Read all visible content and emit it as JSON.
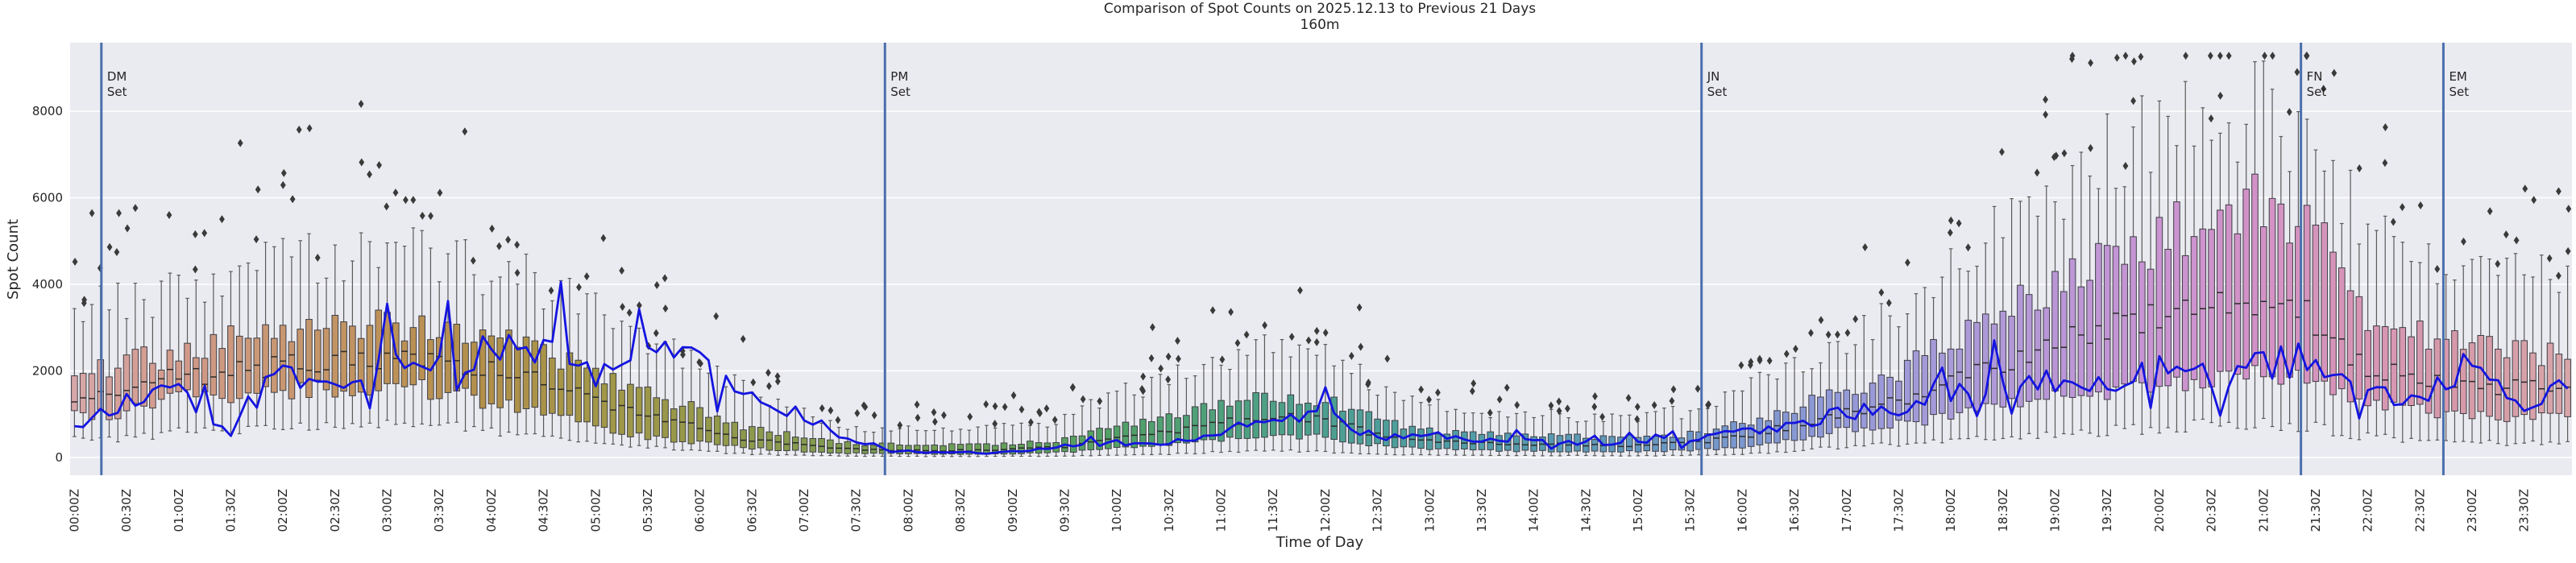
{
  "title": "Comparison of Spot Counts on 2025.12.13 to Previous 21 Days",
  "subtitle": "160m",
  "axes": {
    "x_label": "Time of Day",
    "y_label": "Spot Count",
    "y_ticks": [
      0,
      2000,
      4000,
      6000,
      8000
    ],
    "ylim": [
      -410,
      9500
    ],
    "x_ticks": [
      "00:00Z",
      "00:30Z",
      "01:00Z",
      "01:30Z",
      "02:00Z",
      "02:30Z",
      "03:00Z",
      "03:30Z",
      "04:00Z",
      "04:30Z",
      "05:00Z",
      "05:30Z",
      "06:00Z",
      "06:30Z",
      "07:00Z",
      "07:30Z",
      "08:00Z",
      "08:30Z",
      "09:00Z",
      "09:30Z",
      "10:00Z",
      "10:30Z",
      "11:00Z",
      "11:30Z",
      "12:00Z",
      "12:30Z",
      "13:00Z",
      "13:30Z",
      "14:00Z",
      "14:30Z",
      "15:00Z",
      "15:30Z",
      "16:00Z",
      "16:30Z",
      "17:00Z",
      "17:30Z",
      "18:00Z",
      "18:30Z",
      "19:00Z",
      "19:30Z",
      "20:00Z",
      "20:30Z",
      "21:00Z",
      "21:30Z",
      "22:00Z",
      "22:30Z",
      "23:00Z",
      "23:30Z"
    ]
  },
  "events": [
    {
      "line1": "DM",
      "line2": "Set",
      "minutes": 18
    },
    {
      "line1": "PM",
      "line2": "Set",
      "minutes": 469
    },
    {
      "line1": "JN",
      "line2": "Set",
      "minutes": 939
    },
    {
      "line1": "FN",
      "line2": "Set",
      "minutes": 1284
    },
    {
      "line1": "EM",
      "line2": "Set",
      "minutes": 1366
    }
  ],
  "colors": {
    "figure_bg": "#ffffff",
    "axes_bg": "#eaeaf1",
    "grid": "#ffffff",
    "text": "#262626",
    "today_line": "#1414e0",
    "event_line": "#4a6fad",
    "box_edge": "#3f3f46",
    "whisker": "#5a5a5a",
    "median": "#2b2b2b",
    "outlier": "#3a3a3a",
    "hour_palette": [
      "#d7a6a9",
      "#d29a8b",
      "#c89772",
      "#bd9259",
      "#b18f4a",
      "#a39747",
      "#96984a",
      "#869b4e",
      "#759d52",
      "#62a058",
      "#52a066",
      "#4fa07b",
      "#4d9f90",
      "#4f9da0",
      "#569aad",
      "#6397bd",
      "#7a97cd",
      "#9399d8",
      "#a89ad8",
      "#b897d6",
      "#c994d2",
      "#d392c6",
      "#d795b4",
      "#d69aa8"
    ]
  },
  "chart_data": {
    "type": "boxplot+line",
    "bin_minutes": 5,
    "n_bins": 288,
    "control_minutes_step": 30,
    "box_stats": {
      "minutes": [
        0,
        30,
        60,
        90,
        120,
        150,
        180,
        210,
        240,
        270,
        300,
        330,
        360,
        390,
        420,
        450,
        480,
        510,
        540,
        570,
        600,
        630,
        660,
        690,
        720,
        750,
        780,
        810,
        840,
        870,
        900,
        930,
        960,
        990,
        1020,
        1050,
        1080,
        1110,
        1140,
        1170,
        1200,
        1230,
        1260,
        1290,
        1320,
        1350,
        1380,
        1410
      ],
      "median": [
        1450,
        1500,
        1850,
        1950,
        2100,
        2250,
        2300,
        2250,
        2000,
        1800,
        1350,
        950,
        700,
        430,
        300,
        190,
        170,
        160,
        185,
        235,
        430,
        560,
        800,
        950,
        900,
        560,
        400,
        330,
        300,
        290,
        285,
        320,
        470,
        720,
        1050,
        1250,
        1700,
        2200,
        2600,
        2900,
        3300,
        3600,
        3750,
        3300,
        2100,
        1900,
        1700,
        1600
      ],
      "q1": [
        950,
        1000,
        1400,
        1350,
        1500,
        1600,
        1650,
        1550,
        1300,
        1050,
        750,
        480,
        350,
        220,
        150,
        95,
        85,
        80,
        90,
        115,
        220,
        290,
        420,
        500,
        480,
        290,
        200,
        165,
        150,
        145,
        140,
        160,
        240,
        400,
        650,
        750,
        950,
        1150,
        1350,
        1500,
        1700,
        1850,
        1950,
        1750,
        1300,
        1100,
        1000,
        950
      ],
      "q3": [
        2150,
        2150,
        2400,
        2700,
        2950,
        3000,
        3050,
        2950,
        2750,
        2450,
        1950,
        1500,
        1100,
        700,
        480,
        310,
        290,
        280,
        320,
        400,
        700,
        950,
        1250,
        1450,
        1380,
        900,
        650,
        550,
        500,
        480,
        470,
        530,
        760,
        1100,
        1500,
        1850,
        2600,
        3300,
        3900,
        4400,
        5000,
        5600,
        5850,
        5300,
        3400,
        2850,
        2600,
        2450
      ],
      "whisker_low": [
        450,
        420,
        600,
        550,
        700,
        800,
        800,
        750,
        650,
        450,
        350,
        250,
        150,
        80,
        50,
        30,
        25,
        22,
        25,
        32,
        60,
        80,
        120,
        150,
        140,
        90,
        60,
        50,
        45,
        42,
        40,
        45,
        70,
        130,
        250,
        300,
        380,
        450,
        520,
        600,
        680,
        750,
        800,
        700,
        480,
        400,
        360,
        340
      ],
      "whisker_high": [
        3400,
        3600,
        3900,
        4300,
        4600,
        4600,
        4700,
        4600,
        4400,
        4000,
        3400,
        2800,
        2200,
        1550,
        1050,
        700,
        640,
        600,
        700,
        850,
        1400,
        1800,
        2200,
        2500,
        2400,
        1700,
        1270,
        1060,
        980,
        950,
        930,
        1060,
        1500,
        2050,
        2700,
        3300,
        4300,
        5300,
        6200,
        6900,
        7500,
        7900,
        8100,
        7500,
        5500,
        4800,
        4500,
        4300
      ]
    },
    "line": {
      "minutes": [
        0,
        30,
        60,
        90,
        120,
        150,
        180,
        210,
        240,
        270,
        300,
        330,
        360,
        390,
        420,
        450,
        480,
        510,
        540,
        570,
        600,
        630,
        660,
        690,
        720,
        750,
        780,
        810,
        840,
        870,
        900,
        930,
        960,
        990,
        1020,
        1050,
        1080,
        1110,
        1140,
        1170,
        1200,
        1230,
        1260,
        1290,
        1320,
        1350,
        1380,
        1410,
        1440
      ],
      "values": [
        650,
        1250,
        1600,
        700,
        1900,
        1600,
        2000,
        2250,
        2400,
        2700,
        1900,
        2500,
        2300,
        1400,
        1000,
        400,
        120,
        110,
        130,
        250,
        350,
        300,
        550,
        800,
        1100,
        450,
        520,
        420,
        380,
        350,
        330,
        420,
        560,
        700,
        1100,
        1000,
        1400,
        1900,
        1800,
        1600,
        2350,
        1800,
        2100,
        2300,
        1450,
        1400,
        2100,
        1150,
        1950
      ]
    },
    "outliers": {
      "marker": "diamond",
      "note": "scattered above whiskers each bin, up to ~9300 near 19:30-20:30"
    }
  }
}
